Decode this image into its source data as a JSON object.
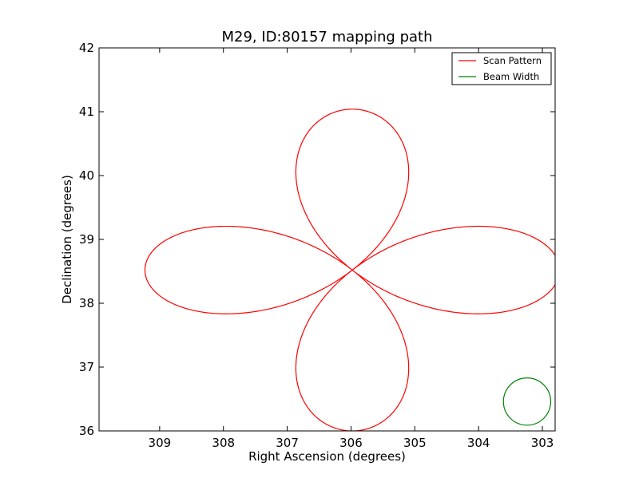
{
  "chart_data": {
    "type": "line",
    "title": "M29, ID:80157 mapping path",
    "xlabel": "Right Ascension (degrees)",
    "ylabel": "Declination (degrees)",
    "xlim": [
      309.95,
      302.8
    ],
    "ylim": [
      36,
      42
    ],
    "x_inverted": true,
    "xticks": [
      309,
      308,
      307,
      306,
      305,
      304,
      303
    ],
    "yticks": [
      36,
      37,
      38,
      39,
      40,
      41,
      42
    ],
    "grid": false,
    "legend": {
      "placement": "upper right",
      "entries": [
        {
          "label": "Scan Pattern",
          "color": "#ff0000"
        },
        {
          "label": "Beam Width",
          "color": "#008000"
        }
      ]
    },
    "series": [
      {
        "name": "Scan Pattern",
        "color": "#ff0000",
        "kind": "rose_curve",
        "center": [
          305.98,
          38.52
        ],
        "petal_amplitude_ra": 3.25,
        "petal_amplitude_dec": 2.52,
        "petals": 4,
        "start_angle_deg": 180,
        "end_angle_deg": 537
      },
      {
        "name": "Beam Width",
        "color": "#008000",
        "kind": "circle",
        "center": [
          303.24,
          36.46
        ],
        "radius_dec": 0.37
      }
    ]
  }
}
